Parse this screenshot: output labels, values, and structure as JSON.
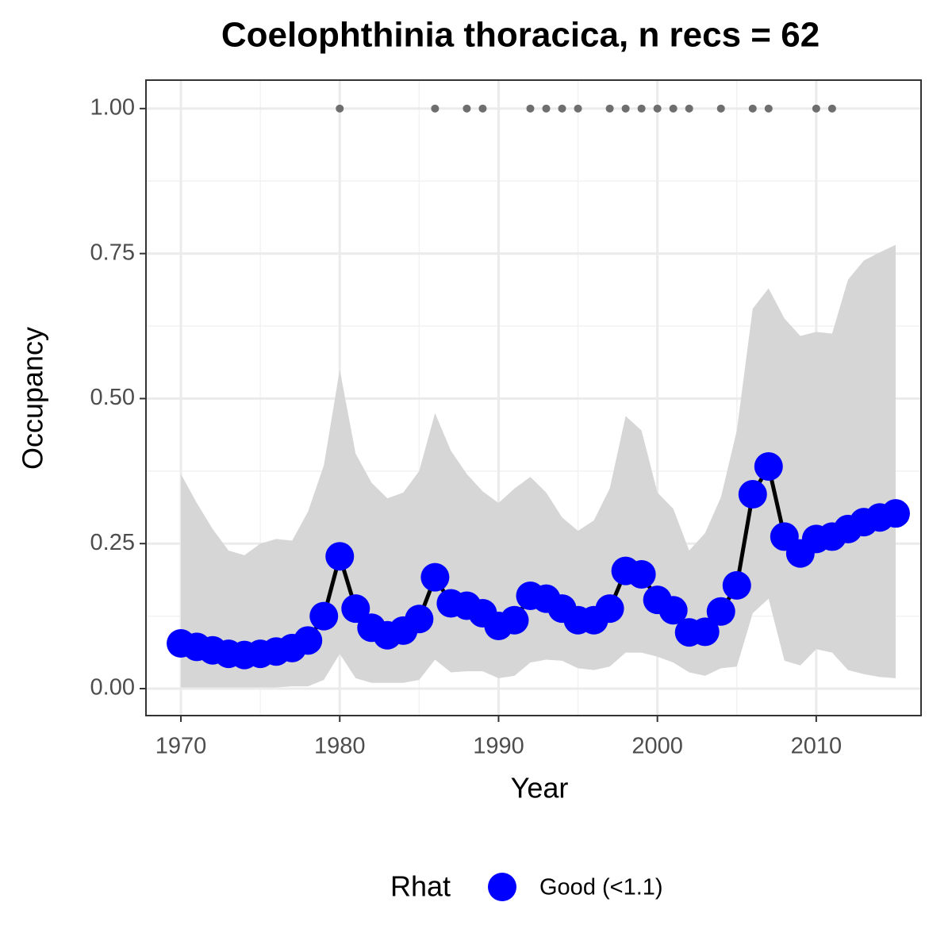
{
  "chart_data": {
    "type": "line",
    "title": "Coelophthinia thoracica, n recs = 62",
    "x_label": "Year",
    "y_label": "Occupancy",
    "legend_title": "Rhat",
    "x": [
      1970,
      1971,
      1972,
      1973,
      1974,
      1975,
      1976,
      1977,
      1978,
      1979,
      1980,
      1981,
      1982,
      1983,
      1984,
      1985,
      1986,
      1987,
      1988,
      1989,
      1990,
      1991,
      1992,
      1993,
      1994,
      1995,
      1996,
      1997,
      1998,
      1999,
      2000,
      2001,
      2002,
      2003,
      2004,
      2005,
      2006,
      2007,
      2008,
      2009,
      2010,
      2011,
      2012,
      2013,
      2014,
      2015
    ],
    "series": [
      {
        "name": "Good (<1.1)",
        "color": "#0000ff",
        "line_color": "#000000",
        "values": [
          0.078,
          0.072,
          0.066,
          0.06,
          0.058,
          0.06,
          0.064,
          0.07,
          0.083,
          0.125,
          0.228,
          0.138,
          0.105,
          0.092,
          0.1,
          0.12,
          0.192,
          0.147,
          0.143,
          0.13,
          0.108,
          0.118,
          0.16,
          0.155,
          0.138,
          0.118,
          0.118,
          0.138,
          0.203,
          0.197,
          0.153,
          0.135,
          0.097,
          0.098,
          0.133,
          0.178,
          0.335,
          0.383,
          0.262,
          0.233,
          0.258,
          0.262,
          0.275,
          0.287,
          0.295,
          0.302
        ]
      }
    ],
    "band": {
      "color": "#d6d6d6",
      "upper": [
        0.37,
        0.32,
        0.275,
        0.238,
        0.23,
        0.25,
        0.258,
        0.255,
        0.305,
        0.385,
        0.55,
        0.405,
        0.355,
        0.328,
        0.338,
        0.375,
        0.475,
        0.41,
        0.37,
        0.34,
        0.32,
        0.345,
        0.365,
        0.338,
        0.295,
        0.272,
        0.29,
        0.345,
        0.47,
        0.445,
        0.338,
        0.31,
        0.238,
        0.268,
        0.33,
        0.445,
        0.655,
        0.69,
        0.638,
        0.608,
        0.615,
        0.612,
        0.705,
        0.738,
        0.752,
        0.765
      ],
      "lower": [
        0.002,
        0.002,
        0.002,
        0.002,
        0.002,
        0.002,
        0.002,
        0.004,
        0.004,
        0.015,
        0.06,
        0.018,
        0.01,
        0.01,
        0.01,
        0.015,
        0.05,
        0.028,
        0.03,
        0.03,
        0.018,
        0.022,
        0.045,
        0.05,
        0.048,
        0.035,
        0.032,
        0.038,
        0.062,
        0.062,
        0.055,
        0.045,
        0.028,
        0.022,
        0.035,
        0.038,
        0.13,
        0.155,
        0.048,
        0.04,
        0.068,
        0.062,
        0.032,
        0.025,
        0.02,
        0.018
      ]
    },
    "records": {
      "color": "#6e6e6e",
      "x": [
        1980,
        1986,
        1988,
        1989,
        1992,
        1993,
        1994,
        1995,
        1997,
        1998,
        1999,
        2000,
        2001,
        2002,
        2004,
        2006,
        2007,
        2010,
        2011
      ],
      "values": [
        1,
        1,
        1,
        1,
        1,
        1,
        1,
        1,
        1,
        1,
        1,
        1,
        1,
        1,
        1,
        1,
        1,
        1,
        1
      ]
    },
    "xlim": [
      1967.8,
      2016.6
    ],
    "ylim": [
      -0.0465,
      1.049
    ],
    "xticks": [
      1970,
      1980,
      1990,
      2000,
      2010
    ],
    "yticks": [
      {
        "value": 0,
        "label": "0.00"
      },
      {
        "value": 0.25,
        "label": "0.25"
      },
      {
        "value": 0.5,
        "label": "0.50"
      },
      {
        "value": 0.75,
        "label": "0.75"
      },
      {
        "value": 1,
        "label": "1.00"
      }
    ],
    "grid": true
  }
}
